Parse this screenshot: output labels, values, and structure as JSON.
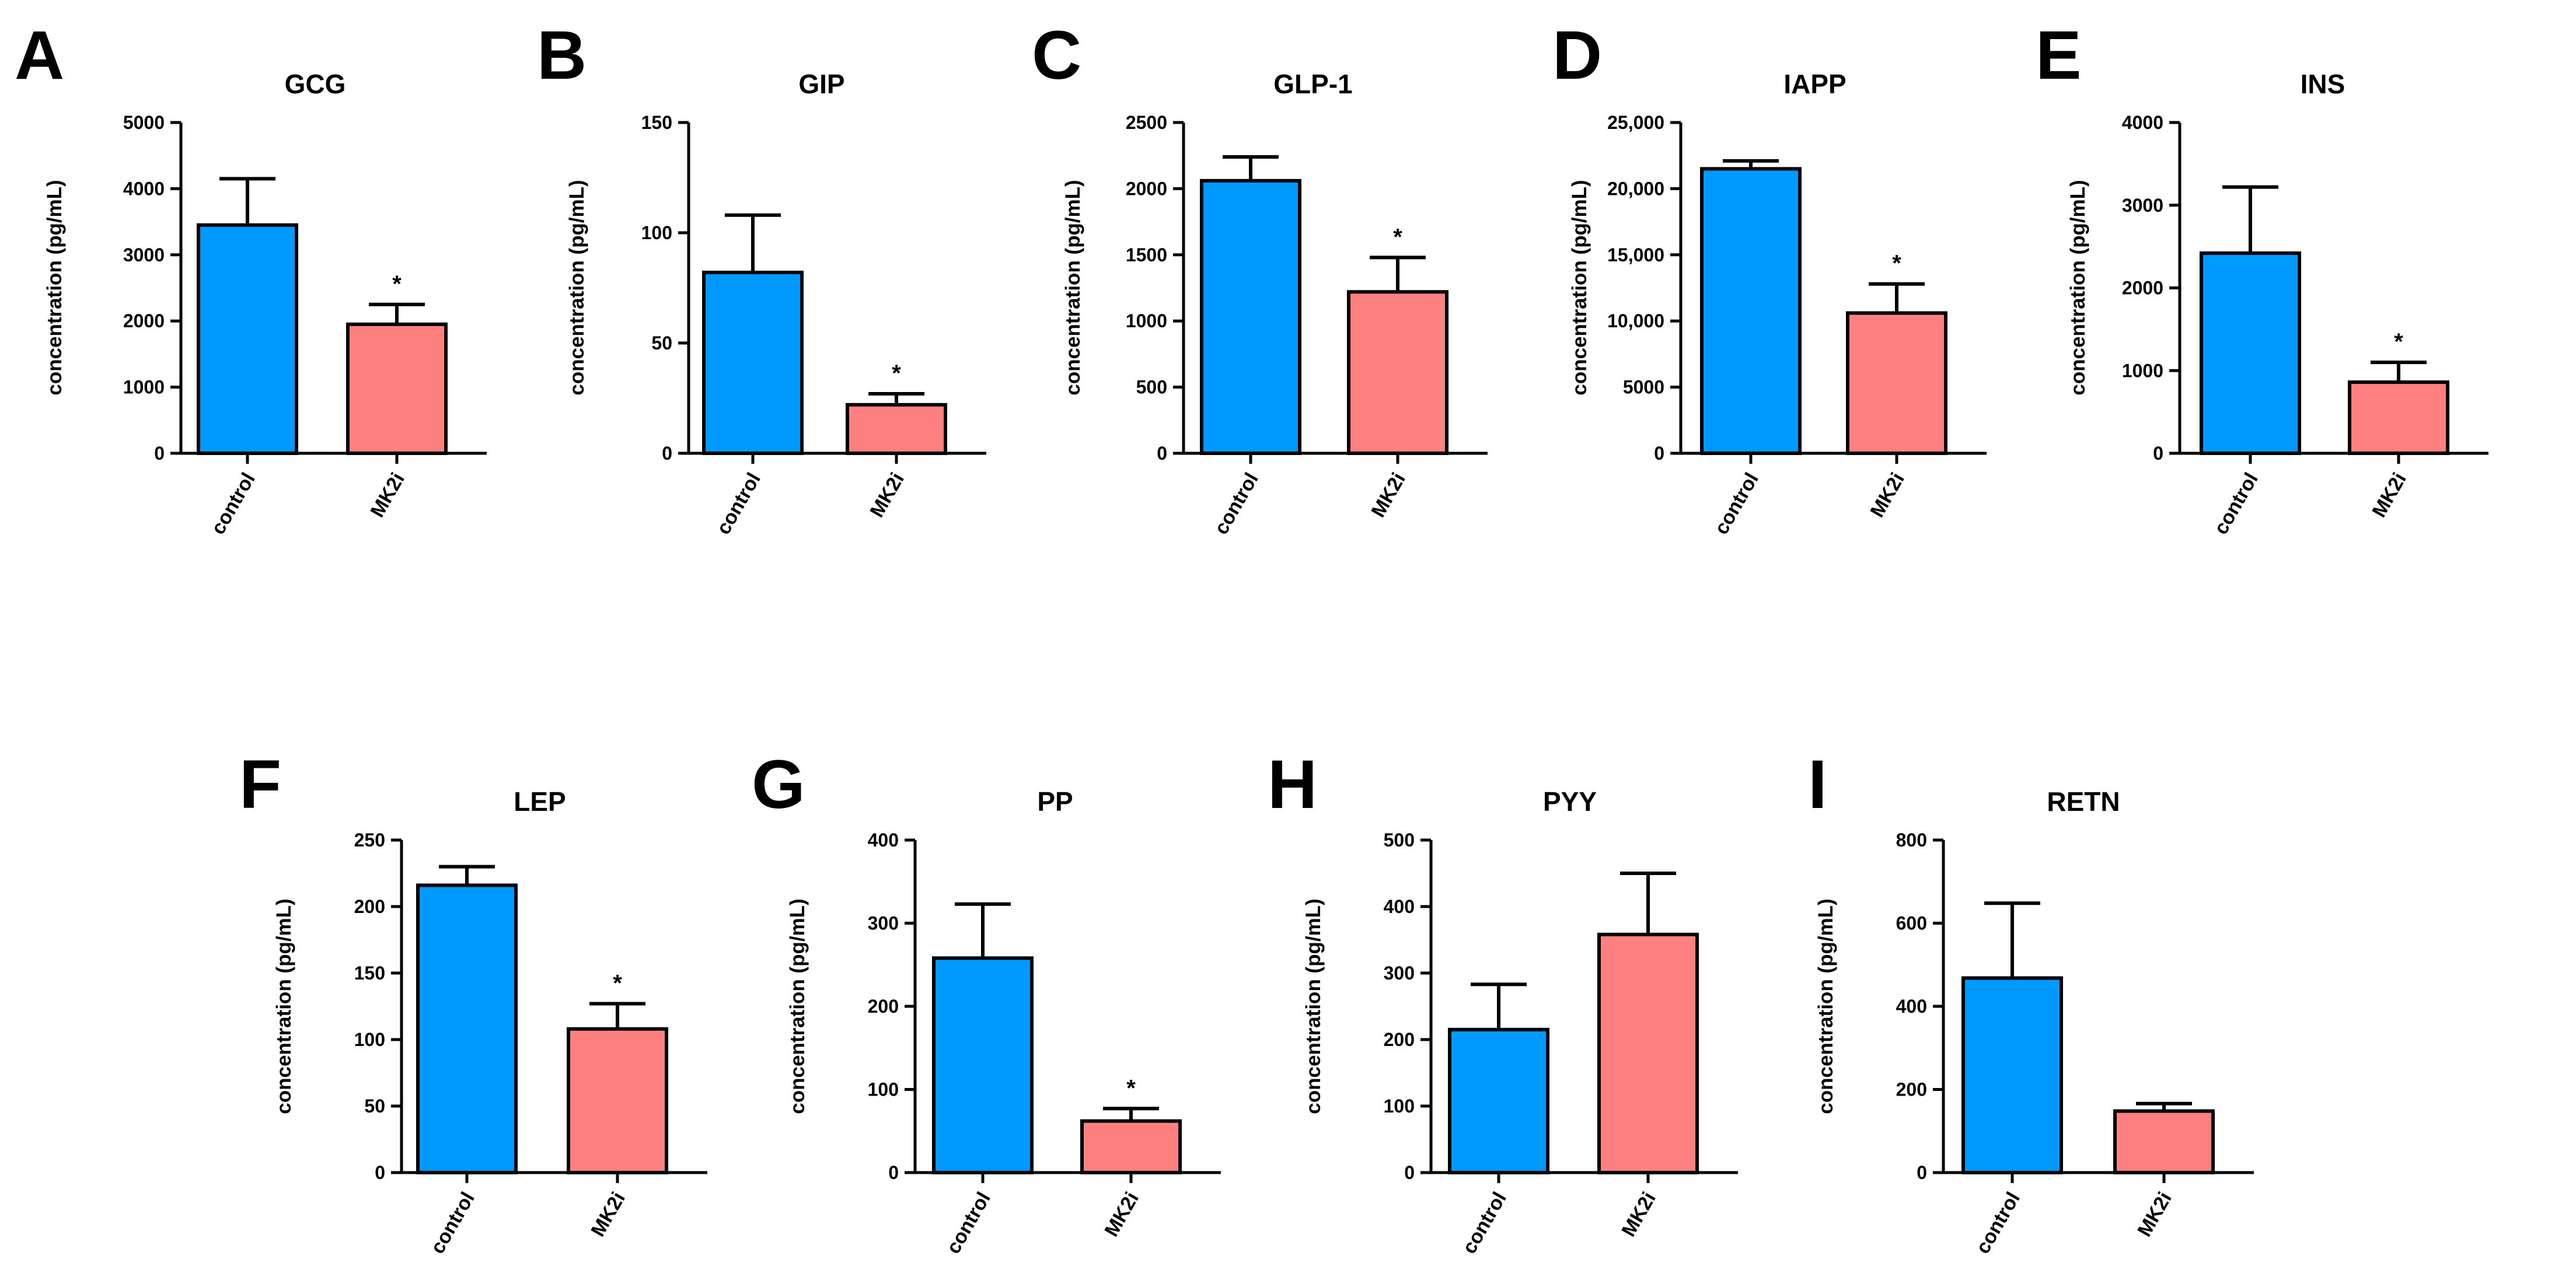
{
  "chart_data": [
    {
      "panel": "A",
      "type": "bar",
      "title": "GCG",
      "ylabel": "concentration (pg/mL)",
      "categories": [
        "control",
        "MK2i"
      ],
      "values": [
        3450,
        1950
      ],
      "errors": [
        700,
        300
      ],
      "significance": [
        "",
        "*"
      ],
      "ylim": [
        0,
        5000
      ],
      "yticks": [
        0,
        1000,
        2000,
        3000,
        4000,
        5000
      ],
      "ytick_labels": [
        "0",
        "1000",
        "2000",
        "3000",
        "4000",
        "5000"
      ]
    },
    {
      "panel": "B",
      "type": "bar",
      "title": "GIP",
      "ylabel": "concentration (pg/mL)",
      "categories": [
        "control",
        "MK2i"
      ],
      "values": [
        82,
        22
      ],
      "errors": [
        26,
        5
      ],
      "significance": [
        "",
        "*"
      ],
      "ylim": [
        0,
        150
      ],
      "yticks": [
        0,
        50,
        100,
        150
      ],
      "ytick_labels": [
        "0",
        "50",
        "100",
        "150"
      ]
    },
    {
      "panel": "C",
      "type": "bar",
      "title": "GLP-1",
      "ylabel": "concentration (pg/mL)",
      "categories": [
        "control",
        "MK2i"
      ],
      "values": [
        2060,
        1220
      ],
      "errors": [
        180,
        260
      ],
      "significance": [
        "",
        "*"
      ],
      "ylim": [
        0,
        2500
      ],
      "yticks": [
        0,
        500,
        1000,
        1500,
        2000,
        2500
      ],
      "ytick_labels": [
        "0",
        "500",
        "1000",
        "1500",
        "2000",
        "2500"
      ]
    },
    {
      "panel": "D",
      "type": "bar",
      "title": "IAPP",
      "ylabel": "concentration (pg/mL)",
      "categories": [
        "control",
        "MK2i"
      ],
      "values": [
        21500,
        10600
      ],
      "errors": [
        600,
        2200
      ],
      "significance": [
        "",
        "*"
      ],
      "ylim": [
        0,
        25000
      ],
      "yticks": [
        0,
        5000,
        10000,
        15000,
        20000,
        25000
      ],
      "ytick_labels": [
        "0",
        "5000",
        "10,000",
        "15,000",
        "20,000",
        "25,000"
      ]
    },
    {
      "panel": "E",
      "type": "bar",
      "title": "INS",
      "ylabel": "concentration (pg/mL)",
      "categories": [
        "control",
        "MK2i"
      ],
      "values": [
        2420,
        860
      ],
      "errors": [
        800,
        240
      ],
      "significance": [
        "",
        "*"
      ],
      "ylim": [
        0,
        4000
      ],
      "yticks": [
        0,
        1000,
        2000,
        3000,
        4000
      ],
      "ytick_labels": [
        "0",
        "1000",
        "2000",
        "3000",
        "4000"
      ]
    },
    {
      "panel": "F",
      "type": "bar",
      "title": "LEP",
      "ylabel": "concentration (pg/mL)",
      "categories": [
        "control",
        "MK2i"
      ],
      "values": [
        216,
        108
      ],
      "errors": [
        14,
        19
      ],
      "significance": [
        "",
        "*"
      ],
      "ylim": [
        0,
        250
      ],
      "yticks": [
        0,
        50,
        100,
        150,
        200,
        250
      ],
      "ytick_labels": [
        "0",
        "50",
        "100",
        "150",
        "200",
        "250"
      ]
    },
    {
      "panel": "G",
      "type": "bar",
      "title": "PP",
      "ylabel": "concentration (pg/mL)",
      "categories": [
        "control",
        "MK2i"
      ],
      "values": [
        258,
        62
      ],
      "errors": [
        65,
        15
      ],
      "significance": [
        "",
        "*"
      ],
      "ylim": [
        0,
        400
      ],
      "yticks": [
        0,
        100,
        200,
        300,
        400
      ],
      "ytick_labels": [
        "0",
        "100",
        "200",
        "300",
        "400"
      ]
    },
    {
      "panel": "H",
      "type": "bar",
      "title": "PYY",
      "ylabel": "concentration (pg/mL)",
      "categories": [
        "control",
        "MK2i"
      ],
      "values": [
        215,
        358
      ],
      "errors": [
        68,
        92
      ],
      "significance": [
        "",
        ""
      ],
      "ylim": [
        0,
        500
      ],
      "yticks": [
        0,
        100,
        200,
        300,
        400,
        500
      ],
      "ytick_labels": [
        "0",
        "100",
        "200",
        "300",
        "400",
        "500"
      ]
    },
    {
      "panel": "I",
      "type": "bar",
      "title": "RETN",
      "ylabel": "concentration (pg/mL)",
      "categories": [
        "control",
        "MK2i"
      ],
      "values": [
        468,
        148
      ],
      "errors": [
        180,
        18
      ],
      "significance": [
        "",
        ""
      ],
      "ylim": [
        0,
        800
      ],
      "yticks": [
        0,
        200,
        400,
        600,
        800
      ],
      "ytick_labels": [
        "0",
        "200",
        "400",
        "600",
        "800"
      ]
    }
  ],
  "colors": {
    "control": "#0099ff",
    "MK2i": "#ff8080",
    "axis": "#000000"
  }
}
